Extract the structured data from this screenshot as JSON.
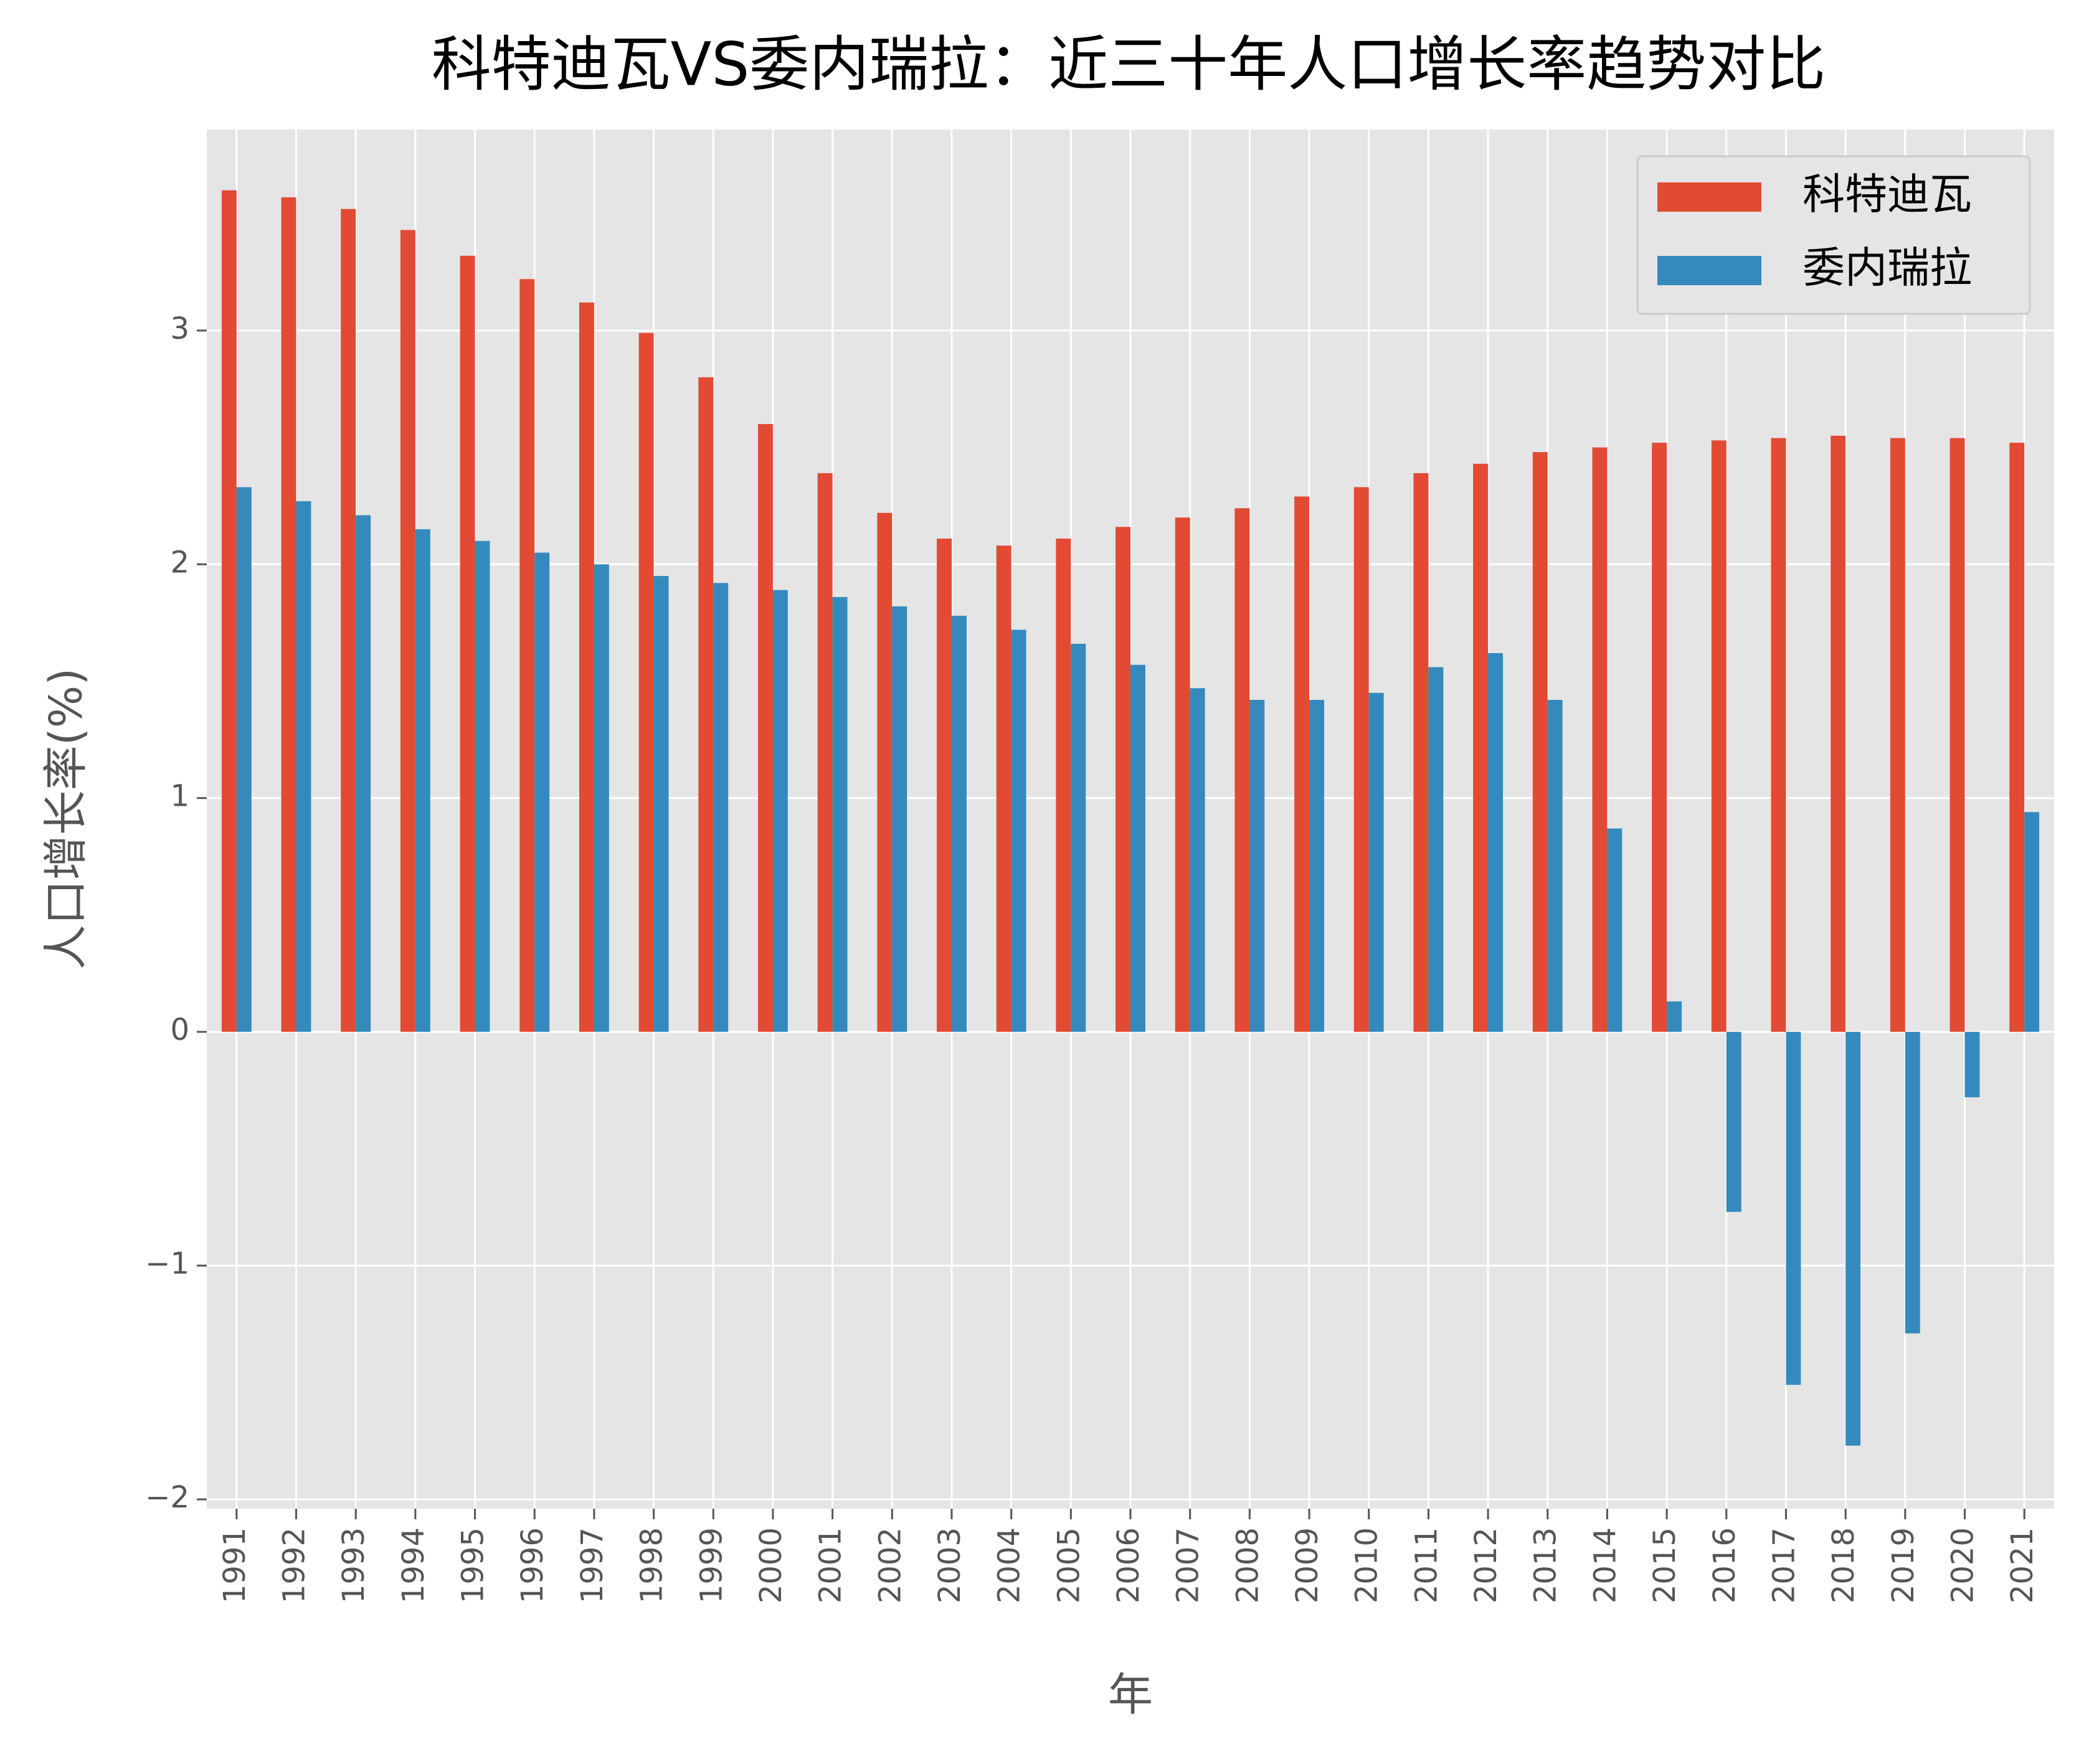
{
  "chart_data": {
    "type": "bar",
    "title": "科特迪瓦VS委内瑞拉：近三十年人口增长率趋势对比",
    "x_label": "年",
    "y_label": "人口增长率(%)",
    "categories": [
      "1991",
      "1992",
      "1993",
      "1994",
      "1995",
      "1996",
      "1997",
      "1998",
      "1999",
      "2000",
      "2001",
      "2002",
      "2003",
      "2004",
      "2005",
      "2006",
      "2007",
      "2008",
      "2009",
      "2010",
      "2011",
      "2012",
      "2013",
      "2014",
      "2015",
      "2016",
      "2017",
      "2018",
      "2019",
      "2020",
      "2021"
    ],
    "series": [
      {
        "name": "科特迪瓦",
        "color": "#E24A33",
        "values": [
          3.6,
          3.57,
          3.52,
          3.43,
          3.32,
          3.22,
          3.12,
          2.99,
          2.8,
          2.6,
          2.39,
          2.22,
          2.11,
          2.08,
          2.11,
          2.16,
          2.2,
          2.24,
          2.29,
          2.33,
          2.39,
          2.43,
          2.48,
          2.5,
          2.52,
          2.53,
          2.54,
          2.55,
          2.54,
          2.54,
          2.52
        ]
      },
      {
        "name": "委内瑞拉",
        "color": "#348ABD",
        "values": [
          2.33,
          2.27,
          2.21,
          2.15,
          2.1,
          2.05,
          2.0,
          1.95,
          1.92,
          1.89,
          1.86,
          1.82,
          1.78,
          1.72,
          1.66,
          1.57,
          1.47,
          1.42,
          1.42,
          1.45,
          1.56,
          1.62,
          1.42,
          0.87,
          0.13,
          -0.77,
          -1.51,
          -1.77,
          -1.29,
          -0.28,
          0.94
        ]
      }
    ],
    "ylim": [
      -2.04,
      3.86
    ],
    "yticks": [
      {
        "value": -2,
        "label": "−2"
      },
      {
        "value": -1,
        "label": "−1"
      },
      0,
      1,
      2,
      3
    ],
    "grid": true,
    "legend": "upper right"
  }
}
